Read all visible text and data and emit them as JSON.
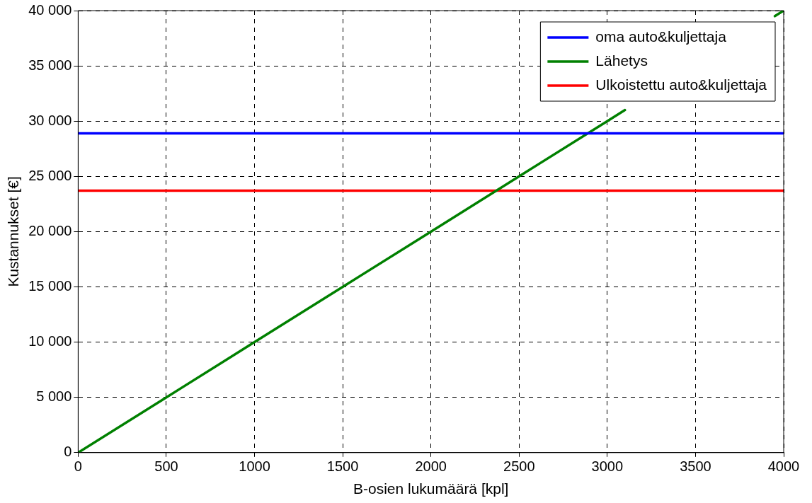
{
  "chart_data": {
    "type": "line",
    "xlabel": "B-osien lukumäärä [kpl]",
    "ylabel": "Kustannukset [€]",
    "xlim": [
      0,
      4000
    ],
    "xticks": [
      0,
      500,
      1000,
      1500,
      2000,
      2500,
      3000,
      3500,
      4000
    ],
    "ylim": [
      0,
      40000
    ],
    "yticks": [
      0,
      {
        "value": 5000,
        "label": "5 000"
      },
      {
        "value": 10000,
        "label": "10 000"
      },
      {
        "value": 15000,
        "label": "15 000"
      },
      {
        "value": 20000,
        "label": "20 000"
      },
      {
        "value": 25000,
        "label": "25 000"
      },
      {
        "value": 30000,
        "label": "30 000"
      },
      {
        "value": 35000,
        "label": "35 000"
      },
      {
        "value": 40000,
        "label": "40 000"
      }
    ],
    "grid": true,
    "legend": "top right",
    "line_style": "solid",
    "series": [
      {
        "name": "oma auto&kuljettaja",
        "color": "#0000ff",
        "x": [
          0,
          4000
        ],
        "values": [
          28900,
          28900
        ]
      },
      {
        "name": "Lähetys",
        "color": "#008000",
        "x": [
          0,
          500,
          1000,
          1500,
          2000,
          2500,
          3000,
          3100,
          3500,
          3950,
          4000
        ],
        "values": [
          0,
          5000,
          10000,
          15000,
          20000,
          25000,
          30000,
          31000,
          null,
          39500,
          40000
        ]
      },
      {
        "name": "Ulkoistettu auto&kuljettaja",
        "color": "#ff0000",
        "x": [
          0,
          4000
        ],
        "values": [
          23700,
          23700
        ]
      }
    ]
  }
}
